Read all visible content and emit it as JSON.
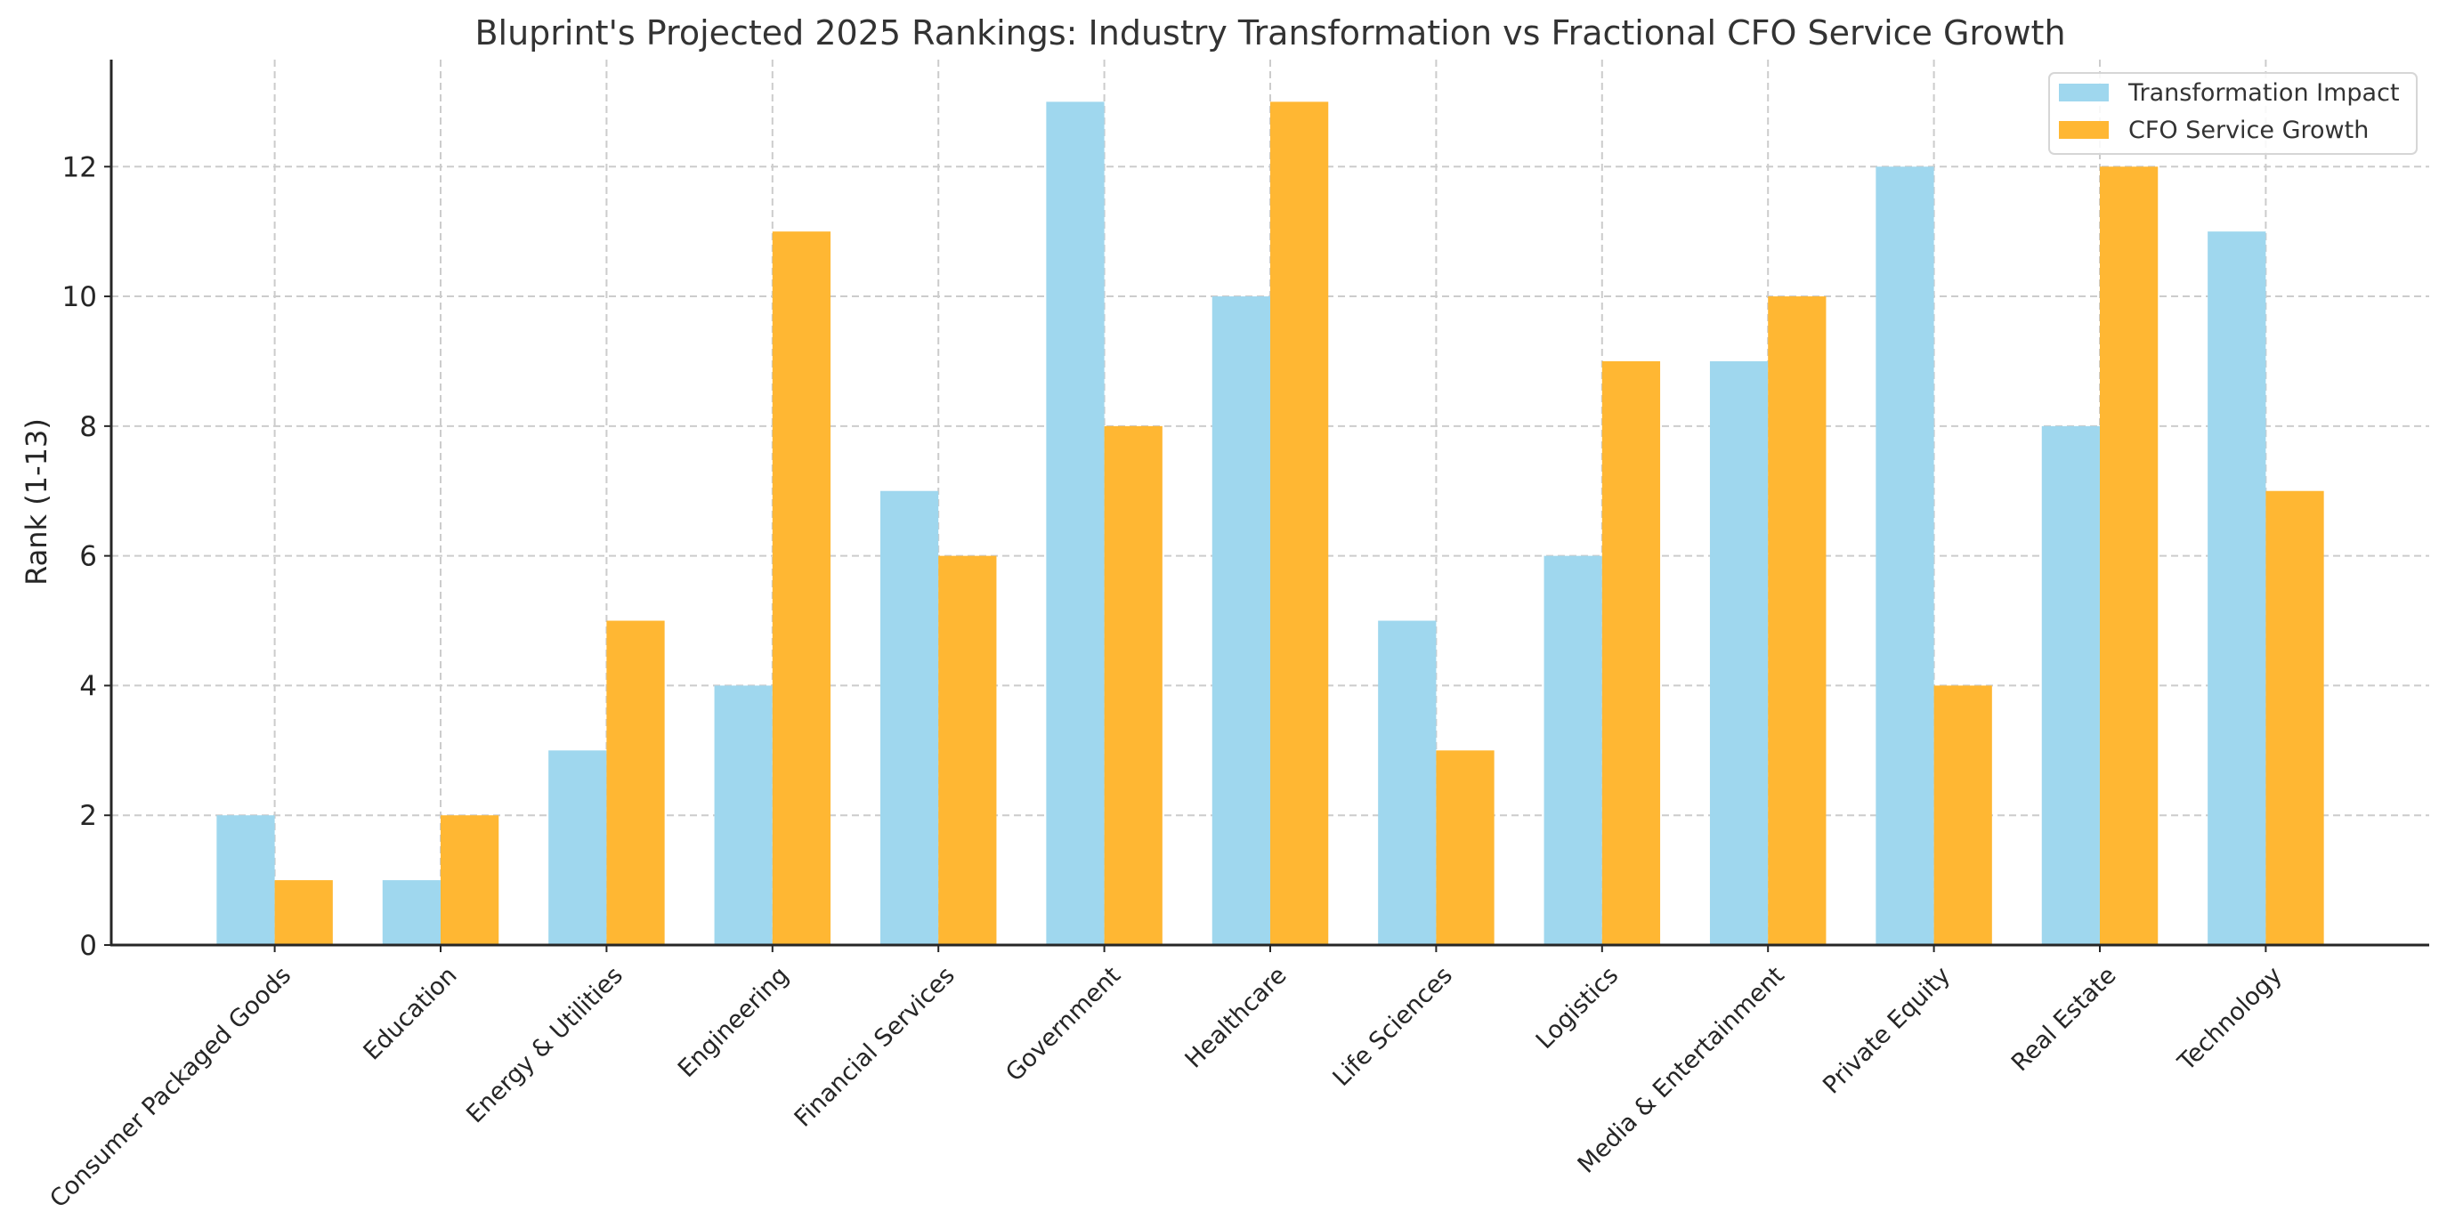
{
  "chart_data": {
    "type": "bar",
    "title": "Bluprint's Projected 2025 Rankings: Industry Transformation vs Fractional CFO Service Growth",
    "xlabel": "",
    "ylabel": "Rank (1-13)",
    "categories": [
      "Consumer Packaged Goods",
      "Education",
      "Energy & Utilities",
      "Engineering",
      "Financial Services",
      "Government",
      "Healthcare",
      "Life Sciences",
      "Logistics",
      "Media & Entertainment",
      "Private Equity",
      "Real Estate",
      "Technology"
    ],
    "series": [
      {
        "name": "Transformation Impact",
        "color": "#9fd7ee",
        "values": [
          2,
          1,
          3,
          4,
          7,
          13,
          10,
          5,
          6,
          9,
          12,
          8,
          11
        ]
      },
      {
        "name": "CFO Service Growth",
        "color": "#ffb733",
        "values": [
          1,
          2,
          5,
          11,
          6,
          8,
          13,
          3,
          9,
          10,
          4,
          12,
          7
        ]
      }
    ],
    "ylim": [
      0,
      13.65
    ],
    "yticks": [
      "0",
      "2",
      "4",
      "6",
      "8",
      "10",
      "12"
    ],
    "grid": true,
    "legend_position": "top-right"
  }
}
